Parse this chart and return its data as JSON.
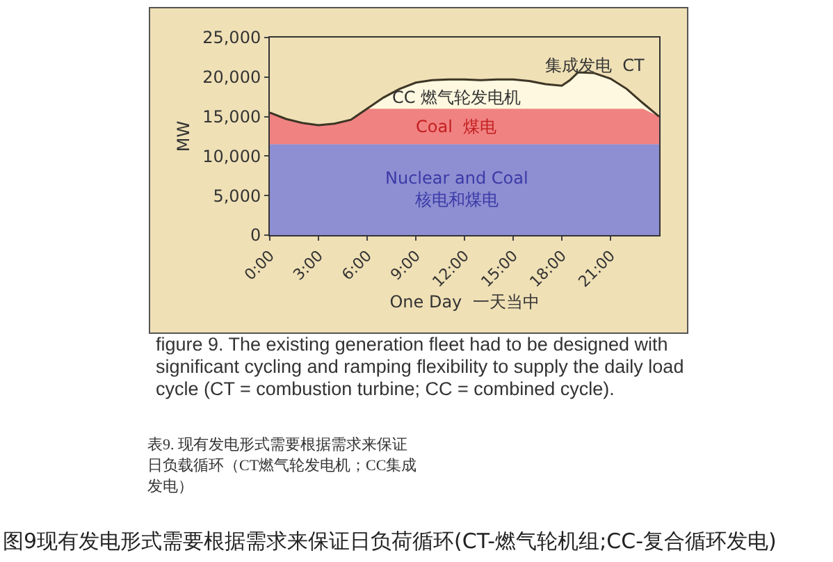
{
  "chart_data": {
    "type": "area",
    "stacked": true,
    "xlabel": "One Day  一天当中",
    "ylabel": "MW",
    "x": [
      0,
      1,
      2,
      3,
      4,
      5,
      6,
      7,
      8,
      9,
      10,
      11,
      12,
      13,
      14,
      15,
      16,
      17,
      18,
      18.5,
      19,
      20,
      21,
      22,
      23,
      24
    ],
    "series": [
      {
        "name": "Nuclear and Coal\n核电和煤电",
        "color": "#8e8ed2",
        "values": [
          11500,
          11500,
          11500,
          11500,
          11500,
          11500,
          11500,
          11500,
          11500,
          11500,
          11500,
          11500,
          11500,
          11500,
          11500,
          11500,
          11500,
          11500,
          11500,
          11500,
          11500,
          11500,
          11500,
          11500,
          11500,
          11500
        ]
      },
      {
        "name": "Coal  煤电",
        "color": "#f08282",
        "values": [
          4000,
          3200,
          2700,
          2400,
          2600,
          3100,
          4500,
          4500,
          4500,
          4500,
          4500,
          4500,
          4500,
          4500,
          4500,
          4500,
          4500,
          4500,
          4500,
          4500,
          4500,
          4500,
          4500,
          4500,
          4500,
          3500
        ]
      },
      {
        "name": "CC 燃气轮发电机",
        "color": "#fdf8df",
        "values": [
          0,
          0,
          0,
          0,
          0,
          0,
          0,
          1400,
          2500,
          3300,
          3600,
          3700,
          3700,
          3600,
          3700,
          3700,
          3500,
          3100,
          2900,
          3600,
          4600,
          4500,
          3800,
          2500,
          700,
          0
        ]
      }
    ],
    "xlim": [
      0,
      24
    ],
    "xticks": [
      {
        "value": 0,
        "label": "0:00"
      },
      {
        "value": 3,
        "label": "3:00"
      },
      {
        "value": 6,
        "label": "6:00"
      },
      {
        "value": 9,
        "label": "9:00"
      },
      {
        "value": 12,
        "label": "12:00"
      },
      {
        "value": 15,
        "label": "15:00"
      },
      {
        "value": 18,
        "label": "18:00"
      },
      {
        "value": 21,
        "label": "21:00"
      }
    ],
    "ylim": [
      0,
      25000
    ],
    "yticks": [
      0,
      {
        "value": 5000,
        "label": "5,000"
      },
      {
        "value": 10000,
        "label": "10,000"
      },
      {
        "value": 15000,
        "label": "15,000"
      },
      {
        "value": 20000,
        "label": "20,000"
      },
      {
        "value": 25000,
        "label": "25,000"
      }
    ],
    "grid": false,
    "legend": false,
    "annotations": [
      "集成发电  CT",
      "figure 9. The existing generation fleet had to be designed with significant cycling and ramping flexibility to supply the daily load cycle (CT = combustion turbine; CC = combined cycle).",
      "表9. 现有发电形式需要根据需求来保证日负载循环（CT燃气轮发电机；CC集成发电）",
      "图9现有发电形式需要根据需求来保证日负荷循环(CT-燃气轮机组;CC-复合循环发电)"
    ]
  }
}
